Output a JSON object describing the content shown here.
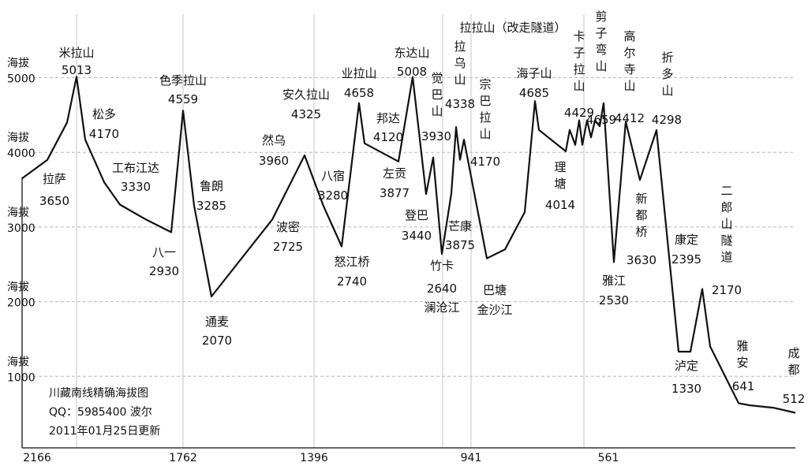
{
  "chart_data": {
    "type": "line",
    "title": "川藏南线精确海拔图",
    "credits": [
      "QQ：5985400 波尔",
      "2011年01月25日更新"
    ],
    "grid": true,
    "ylim": [
      0,
      5500
    ],
    "y_ticks": [
      {
        "value": 5000,
        "label": [
          "海拔",
          "5000"
        ]
      },
      {
        "value": 4000,
        "label": [
          "海拔",
          "4000"
        ]
      },
      {
        "value": 3000,
        "label": [
          "海拔",
          "3000"
        ]
      },
      {
        "value": 2000,
        "label": [
          "海拔",
          "2000"
        ]
      },
      {
        "value": 1000,
        "label": [
          "海拔",
          "1000"
        ]
      }
    ],
    "x_ticks": [
      "2166",
      "1762",
      "1396",
      "941",
      "561"
    ],
    "points": [
      {
        "name": "拉萨",
        "value": "3650",
        "alt": 3650
      },
      {
        "name": "米拉山",
        "value": "5013",
        "alt": 5013
      },
      {
        "name": "松多",
        "value": "4170",
        "alt": 4170
      },
      {
        "name": "工布江达",
        "value": "3330",
        "alt": 3330
      },
      {
        "name": "八一",
        "value": "2930",
        "alt": 2930
      },
      {
        "name": "色季拉山",
        "value": "4559",
        "alt": 4559
      },
      {
        "name": "鲁朗",
        "value": "3285",
        "alt": 3285
      },
      {
        "name": "通麦",
        "value": "2070",
        "alt": 2070
      },
      {
        "name": "波密",
        "value": "2725",
        "alt": 2725
      },
      {
        "name": "然乌",
        "value": "3960",
        "alt": 3960
      },
      {
        "name": "安久拉山",
        "value": "4325",
        "alt": 4325
      },
      {
        "name": "八宿",
        "value": "3280",
        "alt": 3280
      },
      {
        "name": "怒江桥",
        "value": "2740",
        "alt": 2740
      },
      {
        "name": "业拉山",
        "value": "4658",
        "alt": 4658
      },
      {
        "name": "邦达",
        "value": "4120",
        "alt": 4120
      },
      {
        "name": "左贡",
        "value": "3877",
        "alt": 3877
      },
      {
        "name": "东达山",
        "value": "5008",
        "alt": 5008
      },
      {
        "name": "登巴",
        "value": "3440",
        "alt": 3440
      },
      {
        "name": "觉巴山",
        "value": "3930",
        "alt": 3930
      },
      {
        "name": "竹卡",
        "value": "2640",
        "alt": 2640
      },
      {
        "name": "澜沧江",
        "value": "",
        "alt": 2640
      },
      {
        "name": "拉乌山",
        "value": "4338",
        "alt": 4338
      },
      {
        "name": "芒康",
        "value": "3875",
        "alt": 3875
      },
      {
        "name": "宗巴拉山",
        "value": "4170",
        "alt": 4170
      },
      {
        "name": "巴塘",
        "value": "2580",
        "alt": 2580
      },
      {
        "name": "金沙江",
        "value": "",
        "alt": 2580
      },
      {
        "name": "海子山",
        "value": "4685",
        "alt": 4685
      },
      {
        "name": "理塘",
        "value": "4014",
        "alt": 4014
      },
      {
        "name": "卡子拉山",
        "value": "4429",
        "alt": 4429
      },
      {
        "name": "剪子弯山",
        "value": "4659",
        "alt": 4659
      },
      {
        "name": "雅江",
        "value": "2530",
        "alt": 2530
      },
      {
        "name": "高尔寺山",
        "value": "4412",
        "alt": 4412
      },
      {
        "name": "新都桥",
        "value": "3630",
        "alt": 3630
      },
      {
        "name": "折多山",
        "value": "4298",
        "alt": 4298
      },
      {
        "name": "康定",
        "value": "2395",
        "alt": 2395
      },
      {
        "name": "泸定",
        "value": "1330",
        "alt": 1330
      },
      {
        "name": "二郎山隧道",
        "value": "2170",
        "alt": 2170
      },
      {
        "name": "雅安",
        "value": "641",
        "alt": 641
      },
      {
        "name": "成都",
        "value": "512",
        "alt": 512
      }
    ],
    "extra_labels": [
      "拉拉山（改走隧道）"
    ]
  }
}
